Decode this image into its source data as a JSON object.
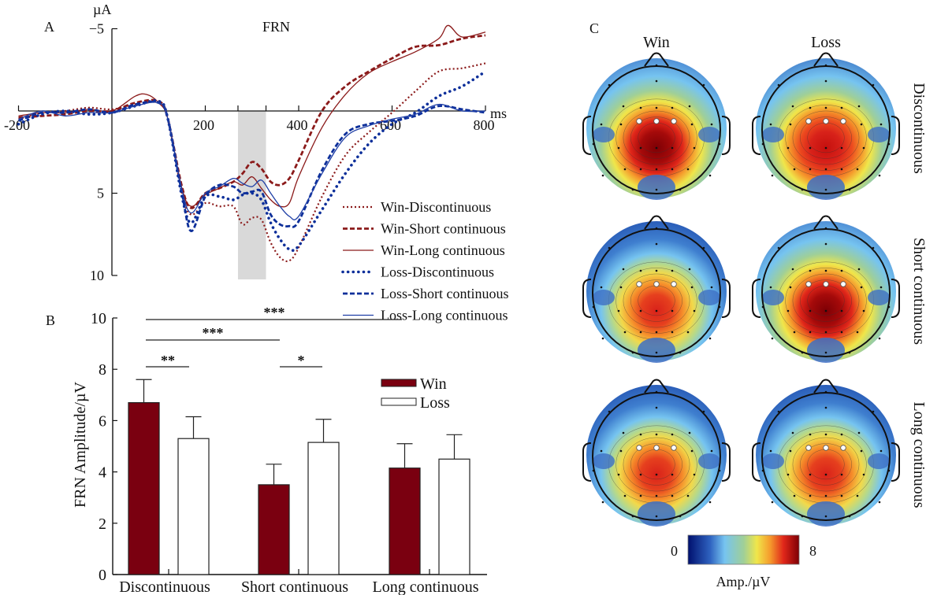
{
  "chart_data": [
    {
      "panel": "A",
      "type": "line",
      "title": "FRN",
      "xlabel": "ms",
      "ylabel": "µA",
      "xlim": [
        -200,
        800
      ],
      "ylim": [
        -5,
        10
      ],
      "y_inverted": true,
      "xticks": [
        -200,
        200,
        400,
        600,
        800
      ],
      "xtick_labels": [
        "-200",
        "200",
        "400",
        "600",
        "800"
      ],
      "yticks": [
        -5,
        5,
        10
      ],
      "ytick_labels": [
        "−5",
        "5",
        "10"
      ],
      "highlight_window_ms": [
        270,
        330
      ],
      "legend_position": "lower-right",
      "series": [
        {
          "name": "Win-Discontinuous",
          "color": "#8b1a1a",
          "style": "dotted",
          "x": [
            -200,
            -150,
            -100,
            -50,
            0,
            50,
            100,
            120,
            150,
            170,
            200,
            230,
            260,
            280,
            300,
            320,
            340,
            360,
            380,
            400,
            450,
            500,
            550,
            600,
            650,
            700,
            750,
            800
          ],
          "y": [
            0.5,
            0.1,
            0.0,
            -0.2,
            -0.1,
            -0.4,
            -0.5,
            0.5,
            5.0,
            6.3,
            5.6,
            5.8,
            5.8,
            6.9,
            6.5,
            6.6,
            8.0,
            8.9,
            9.1,
            8.3,
            5.2,
            2.7,
            1.3,
            0.1,
            -1.2,
            -2.4,
            -2.6,
            -2.9
          ]
        },
        {
          "name": "Win-Short continuous",
          "color": "#8b1a1a",
          "style": "dashed",
          "x": [
            -200,
            -150,
            -100,
            -50,
            0,
            50,
            100,
            120,
            150,
            170,
            200,
            230,
            260,
            280,
            300,
            320,
            340,
            360,
            380,
            400,
            450,
            500,
            550,
            600,
            650,
            700,
            750,
            800
          ],
          "y": [
            0.4,
            0.3,
            0.2,
            0.0,
            0.0,
            -0.5,
            -0.6,
            0.5,
            4.6,
            5.9,
            5.0,
            4.7,
            4.3,
            3.8,
            3.1,
            3.5,
            4.3,
            4.5,
            4.1,
            3.0,
            0.0,
            -1.5,
            -2.4,
            -3.2,
            -3.9,
            -4.0,
            -4.4,
            -4.6
          ]
        },
        {
          "name": "Win-Long continuous",
          "color": "#8b1a1a",
          "style": "solid",
          "x": [
            -200,
            -150,
            -100,
            -50,
            0,
            50,
            75,
            100,
            120,
            150,
            170,
            200,
            230,
            260,
            280,
            300,
            320,
            340,
            360,
            380,
            400,
            450,
            500,
            550,
            600,
            650,
            700,
            720,
            750,
            800
          ],
          "y": [
            0.3,
            0.1,
            0.1,
            -0.1,
            0.0,
            -0.9,
            -1.0,
            -0.5,
            0.5,
            4.7,
            5.8,
            5.1,
            4.7,
            4.3,
            4.5,
            4.0,
            4.7,
            5.4,
            5.8,
            5.6,
            4.0,
            1.0,
            -1.0,
            -2.3,
            -3.0,
            -3.6,
            -4.4,
            -5.2,
            -4.5,
            -4.8
          ]
        },
        {
          "name": "Loss-Discontinuous",
          "color": "#0d2f9a",
          "style": "dotted-thick",
          "x": [
            -200,
            -150,
            -100,
            -50,
            0,
            50,
            100,
            120,
            150,
            170,
            200,
            230,
            260,
            280,
            300,
            320,
            340,
            360,
            380,
            400,
            450,
            500,
            550,
            600,
            650,
            700,
            750,
            800
          ],
          "y": [
            0.8,
            0.2,
            0.0,
            0.2,
            0.1,
            -0.3,
            -0.6,
            0.5,
            5.2,
            6.8,
            5.2,
            5.2,
            5.4,
            5.1,
            5.0,
            5.4,
            6.8,
            7.8,
            8.4,
            8.2,
            6.0,
            3.8,
            2.0,
            0.8,
            0.1,
            -0.9,
            -1.5,
            -2.4
          ]
        },
        {
          "name": "Loss-Short continuous",
          "color": "#0d2f9a",
          "style": "dashed",
          "x": [
            -200,
            -150,
            -100,
            -50,
            0,
            50,
            100,
            120,
            150,
            170,
            200,
            230,
            260,
            280,
            300,
            320,
            340,
            360,
            380,
            400,
            450,
            500,
            550,
            600,
            650,
            700,
            750,
            800
          ],
          "y": [
            0.6,
            0.1,
            0.1,
            -0.1,
            0.1,
            -0.4,
            -0.5,
            0.5,
            5.0,
            7.3,
            5.2,
            4.5,
            4.6,
            5.0,
            4.9,
            4.9,
            6.3,
            6.9,
            7.0,
            6.7,
            3.6,
            1.4,
            0.8,
            0.6,
            0.3,
            -0.3,
            -0.1,
            0.1
          ]
        },
        {
          "name": "Loss-Long continuous",
          "color": "#1f3fa6",
          "style": "solid",
          "x": [
            -200,
            -150,
            -100,
            -50,
            0,
            50,
            100,
            120,
            150,
            170,
            200,
            230,
            260,
            280,
            300,
            320,
            340,
            360,
            380,
            400,
            450,
            500,
            550,
            600,
            650,
            700,
            750,
            800
          ],
          "y": [
            0.5,
            0.0,
            0.3,
            0.1,
            0.1,
            -0.3,
            -0.5,
            0.5,
            4.8,
            6.2,
            5.0,
            4.6,
            4.1,
            4.4,
            4.6,
            4.2,
            5.0,
            5.8,
            6.4,
            6.4,
            3.8,
            1.6,
            0.9,
            0.5,
            0.2,
            -0.4,
            0.0,
            0.0
          ]
        }
      ]
    },
    {
      "panel": "B",
      "type": "bar",
      "ylabel": "FRN Amplitude/µV",
      "xlabel": "",
      "ylim": [
        0,
        10
      ],
      "yticks": [
        0,
        2,
        4,
        6,
        8,
        10
      ],
      "categories": [
        "Discontinuous",
        "Short continuous",
        "Long continuous"
      ],
      "legend_position": "upper-right",
      "series": [
        {
          "name": "Win",
          "color": "#7a0010",
          "values": [
            6.7,
            3.5,
            4.15
          ],
          "error_upper": [
            7.6,
            4.3,
            5.1
          ]
        },
        {
          "name": "Loss",
          "color": "#ffffff",
          "values": [
            5.3,
            5.15,
            4.5
          ],
          "error_upper": [
            6.15,
            6.05,
            5.45
          ]
        }
      ],
      "significance": [
        {
          "from": "Win-Discontinuous",
          "to": "Win-Long continuous",
          "label": "***"
        },
        {
          "from": "Win-Discontinuous",
          "to": "Win-Short continuous",
          "label": "***"
        },
        {
          "from": "Win-Discontinuous",
          "to": "Loss-Discontinuous",
          "label": "**"
        },
        {
          "from": "Win-Short continuous",
          "to": "Loss-Short continuous",
          "label": "*"
        }
      ]
    },
    {
      "panel": "C",
      "type": "heatmap",
      "subtype": "scalp topography",
      "columns": [
        "Win",
        "Loss"
      ],
      "rows": [
        "Discontinuous",
        "Short continuous",
        "Long continuous"
      ],
      "peak_intensity": [
        [
          1.0,
          0.85
        ],
        [
          0.72,
          0.95
        ],
        [
          0.72,
          0.8
        ]
      ],
      "colorbar": {
        "min": "0",
        "max": "8",
        "label": "Amp./µV",
        "colors": [
          "#00106e",
          "#2f63c0",
          "#76c4f0",
          "#9fcf98",
          "#f0e64a",
          "#f59a2c",
          "#e0261a",
          "#7d0005"
        ]
      }
    }
  ],
  "labels": {
    "panel_a": "A",
    "panel_b": "B",
    "panel_c": "C",
    "frn_title": "FRN",
    "unit_a": "µA",
    "ms": "ms",
    "colorbar_min": "0",
    "colorbar_max": "8",
    "colorbar_label": "Amp./µV"
  }
}
